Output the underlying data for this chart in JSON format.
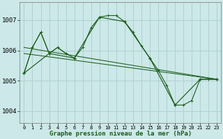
{
  "background_color": "#cce8e8",
  "grid_color": "#b0d0d0",
  "line_color": "#1a5c1a",
  "xlabel": "Graphe pression niveau de la mer (hPa)",
  "xlim": [
    -0.5,
    23.5
  ],
  "ylim": [
    1003.6,
    1007.6
  ],
  "yticks": [
    1004,
    1005,
    1006,
    1007
  ],
  "xticks": [
    0,
    1,
    2,
    3,
    4,
    5,
    6,
    7,
    8,
    9,
    10,
    11,
    12,
    13,
    14,
    15,
    16,
    17,
    18,
    19,
    20,
    21,
    22,
    23
  ],
  "series_main": {
    "x": [
      0,
      1,
      2,
      3,
      4,
      5,
      6,
      7,
      8,
      9,
      10,
      11,
      12,
      13,
      14,
      15,
      16,
      17,
      18,
      19,
      20,
      21,
      22,
      23
    ],
    "y": [
      1005.25,
      1006.1,
      1006.6,
      1005.9,
      1006.1,
      1005.9,
      1005.75,
      1006.1,
      1006.75,
      1007.1,
      1007.15,
      1007.15,
      1006.95,
      1006.6,
      1006.15,
      1005.75,
      1005.35,
      1004.85,
      1004.2,
      1004.2,
      1004.35,
      1005.05,
      1005.05,
      1005.05
    ]
  },
  "series_3h": {
    "x": [
      0,
      3,
      6,
      9,
      12,
      15,
      18,
      21,
      23
    ],
    "y": [
      1005.25,
      1005.9,
      1005.75,
      1007.1,
      1006.95,
      1005.75,
      1004.2,
      1005.05,
      1005.05
    ]
  },
  "series_zigzag": {
    "x": [
      0,
      1,
      2,
      3,
      4,
      5
    ],
    "y": [
      1005.25,
      1006.1,
      1006.6,
      1005.9,
      1006.1,
      1005.9
    ]
  },
  "trend_line1": {
    "x": [
      0,
      23
    ],
    "y": [
      1006.1,
      1005.05
    ]
  },
  "trend_line2": {
    "x": [
      0,
      23
    ],
    "y": [
      1005.9,
      1005.05
    ]
  },
  "font_size_xlabel": 6.5,
  "font_size_yticks": 6.5,
  "font_size_xticks": 5.0
}
